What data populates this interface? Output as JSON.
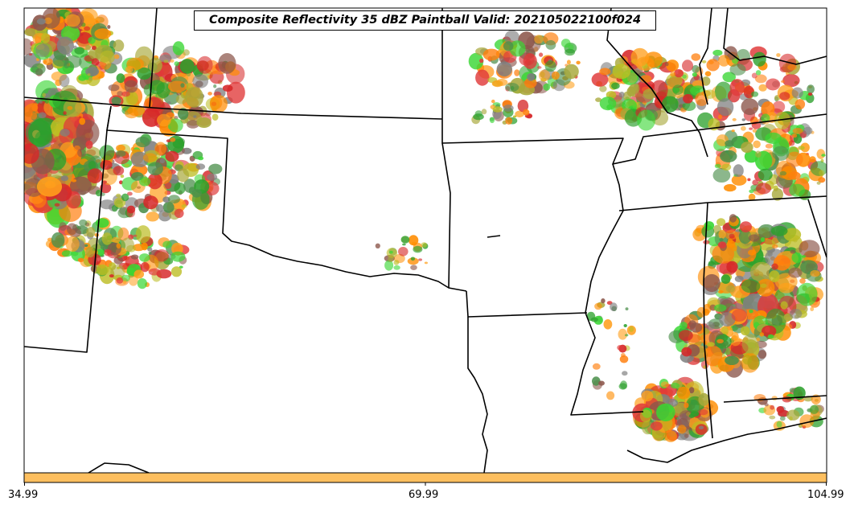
{
  "title": "Composite Reflectivity 35 dBZ Paintball Valid: 202105022100f024",
  "colorbar": {
    "color": "#fdbf5f",
    "ticks": [
      "34.99",
      "69.99",
      "104.99"
    ]
  },
  "colors": {
    "ensemble": [
      "#d62728",
      "#ff7f0e",
      "#2ca02c",
      "#8c564b",
      "#7f7f7f",
      "#bcbd22",
      "#39d633",
      "#ff9f1c",
      "#e03a3a",
      "#a8a83a",
      "#4b8f4b",
      "#ff8c00"
    ],
    "borders": "#000000"
  },
  "icons": {
    "map": "us-south-central-state-borders",
    "storms": "paintball-reflectivity-blobs"
  }
}
